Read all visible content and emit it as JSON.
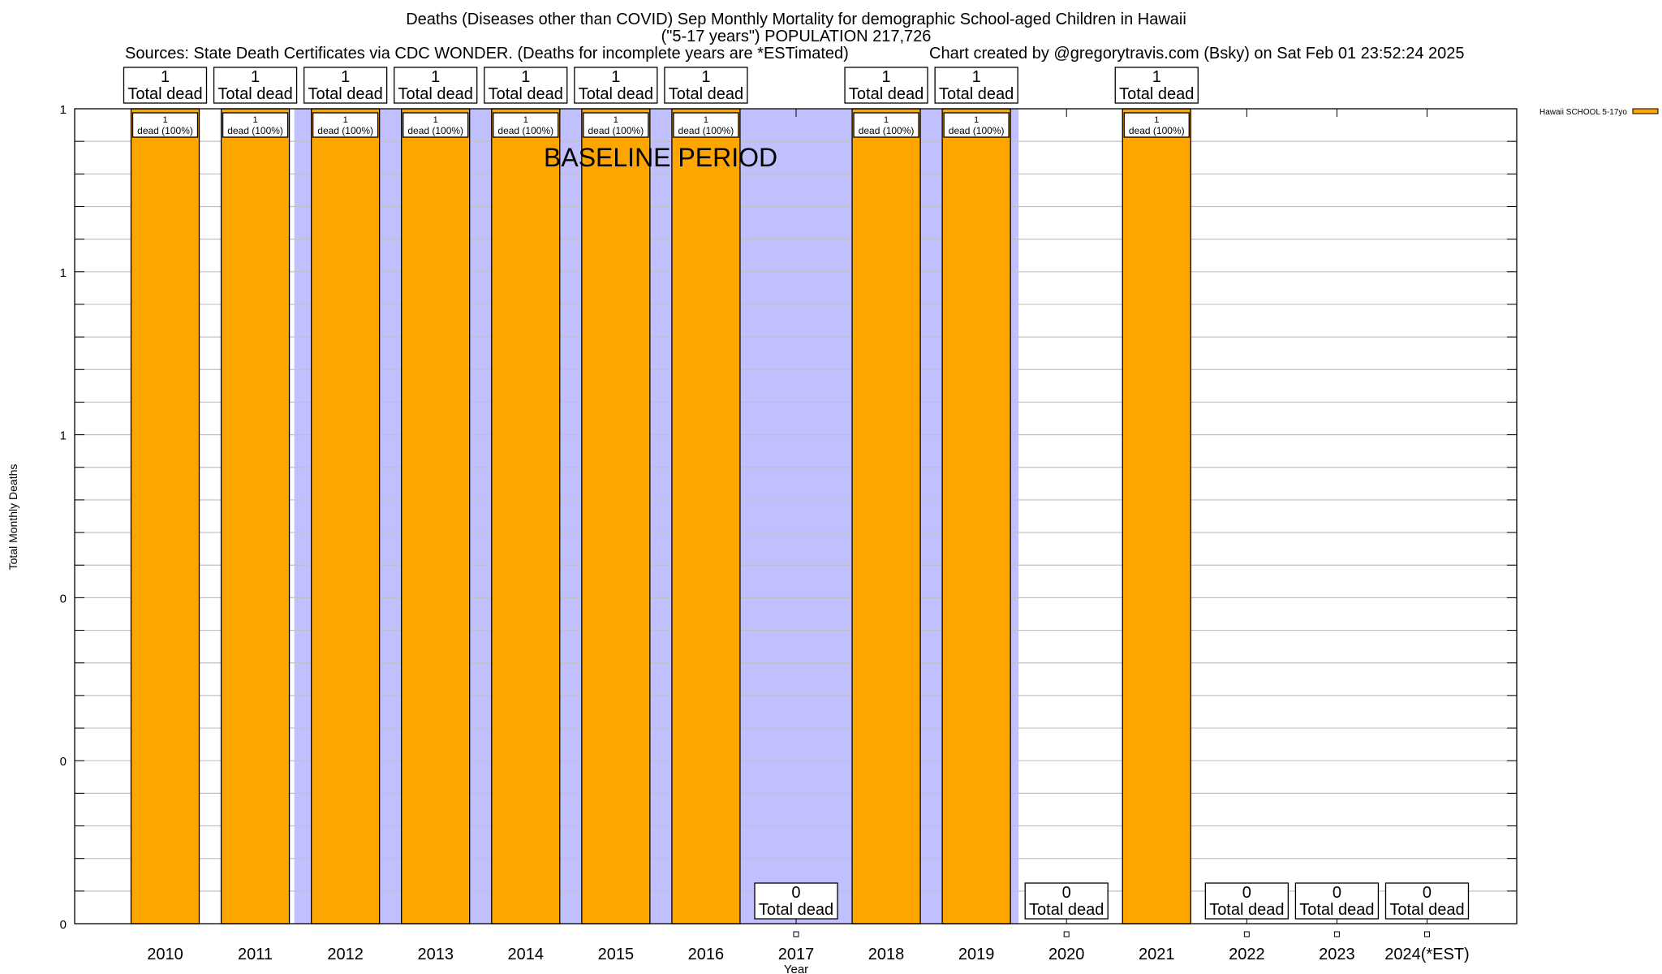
{
  "chart_data": {
    "type": "bar",
    "title_lines": [
      "Deaths (Diseases other than COVID) Sep Monthly Mortality for demographic School-aged Children in Hawaii",
      "(\"5-17 years\") POPULATION 217,726"
    ],
    "sources": "Sources: State Death Certificates via CDC WONDER. (Deaths for incomplete years are *ESTimated)",
    "credit": "Chart created by @gregorytravis.com (Bsky) on Sat Feb 01 23:52:24 2025",
    "xlabel": "Year",
    "ylabel": "Total Monthly Deaths",
    "ylim": [
      0,
      1
    ],
    "y_tick_labels": [
      "0",
      "0",
      "0",
      "1",
      "1",
      "1"
    ],
    "grid": true,
    "legend": {
      "position": "top-right",
      "entries": [
        "Hawaii SCHOOL 5-17yo"
      ]
    },
    "categories": [
      "2010",
      "2011",
      "2012",
      "2013",
      "2014",
      "2015",
      "2016",
      "2017",
      "2018",
      "2019",
      "2020",
      "2021",
      "2022",
      "2023",
      "2024(*EST)"
    ],
    "series": [
      {
        "name": "Hawaii SCHOOL 5-17yo",
        "values": [
          1,
          1,
          1,
          1,
          1,
          1,
          1,
          0,
          1,
          1,
          0,
          1,
          0,
          0,
          0
        ]
      }
    ],
    "total_label": "Total dead",
    "share_label": "dead (100%)",
    "annotation": "BASELINE PERIOD",
    "baseline_period": [
      "2012",
      "2019"
    ],
    "colors": {
      "bar": "#ffa500",
      "baseline": "#c0c0ff",
      "grid": "#c0c0c0"
    }
  }
}
